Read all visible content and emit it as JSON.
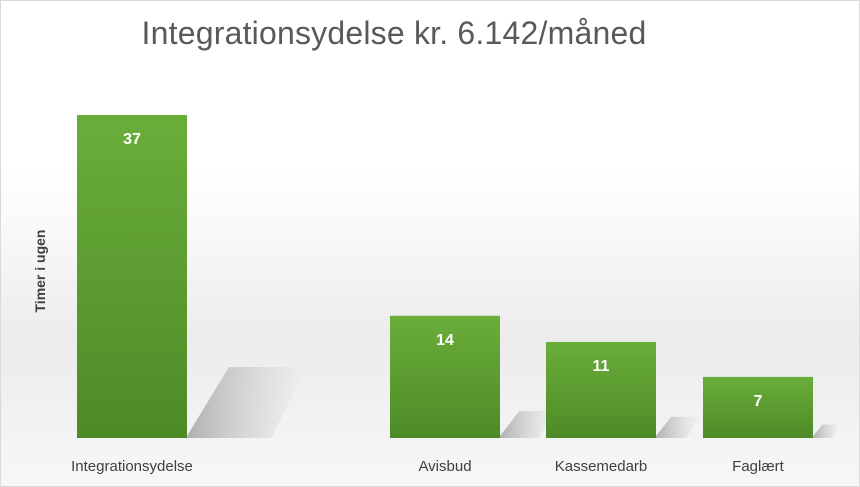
{
  "chart_data": {
    "type": "bar",
    "title": "Integrationsydelse kr. 6.142/måned",
    "ylabel": "Timer i ugen",
    "xlabel": "",
    "categories": [
      "Integrationsydelse",
      "Avisbud",
      "Kassemedarb",
      "Faglært"
    ],
    "values": [
      37,
      14,
      11,
      7
    ],
    "ylim": [
      0,
      37
    ],
    "grid": false,
    "legend": "none",
    "bar_color": "#5fa032",
    "value_label_color": "#ffffff"
  }
}
